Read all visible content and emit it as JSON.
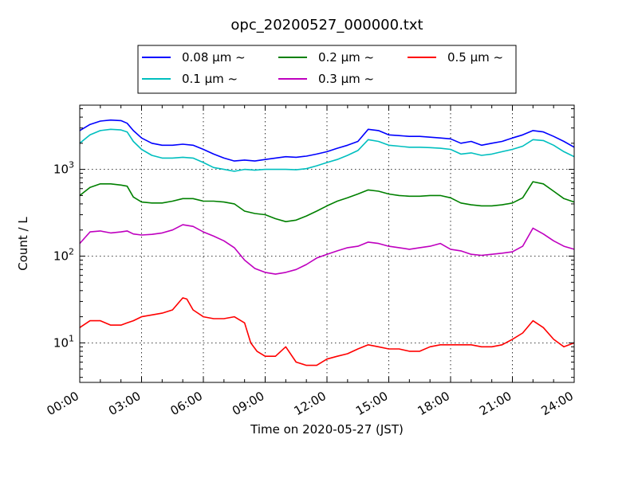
{
  "chart_data": {
    "type": "line",
    "title": "opc_20200527_000000.txt",
    "xlabel": "Time on 2020-05-27 (JST)",
    "ylabel": "Count / L",
    "x_unit": "hours",
    "xlim": [
      0,
      24
    ],
    "ylim": [
      3.5,
      5500
    ],
    "yscale": "log",
    "grid": true,
    "legend_position": "top-center",
    "x_ticks": [
      {
        "value": 0,
        "label": "00:00"
      },
      {
        "value": 3,
        "label": "03:00"
      },
      {
        "value": 6,
        "label": "06:00"
      },
      {
        "value": 9,
        "label": "09:00"
      },
      {
        "value": 12,
        "label": "12:00"
      },
      {
        "value": 15,
        "label": "15:00"
      },
      {
        "value": 18,
        "label": "18:00"
      },
      {
        "value": 21,
        "label": "21:00"
      },
      {
        "value": 24,
        "label": "24:00"
      }
    ],
    "y_ticks": [
      {
        "value": 10,
        "base": "10",
        "exp": "1"
      },
      {
        "value": 100,
        "base": "10",
        "exp": "2"
      },
      {
        "value": 1000,
        "base": "10",
        "exp": "3"
      }
    ],
    "series": [
      {
        "name": "0.08 μm ~",
        "color": "#0000ff",
        "x": [
          0,
          0.5,
          1,
          1.5,
          2,
          2.3,
          2.6,
          3,
          3.5,
          4,
          4.5,
          5,
          5.5,
          6,
          6.5,
          7,
          7.5,
          8,
          8.5,
          9,
          9.5,
          10,
          10.5,
          11,
          11.5,
          12,
          12.5,
          13,
          13.5,
          14,
          14.5,
          15,
          15.5,
          16,
          16.5,
          17,
          17.5,
          18,
          18.5,
          19,
          19.5,
          20,
          20.5,
          21,
          21.5,
          22,
          22.5,
          23,
          23.5,
          24
        ],
        "y": [
          2800,
          3300,
          3600,
          3700,
          3650,
          3400,
          2800,
          2300,
          2000,
          1900,
          1900,
          1950,
          1900,
          1700,
          1500,
          1350,
          1250,
          1280,
          1250,
          1300,
          1350,
          1400,
          1380,
          1420,
          1500,
          1600,
          1750,
          1900,
          2100,
          2900,
          2800,
          2500,
          2450,
          2400,
          2400,
          2350,
          2300,
          2250,
          2000,
          2100,
          1900,
          2000,
          2100,
          2300,
          2500,
          2800,
          2700,
          2400,
          2100,
          1800
        ]
      },
      {
        "name": "0.1 μm ~",
        "color": "#00bfbf",
        "x": [
          0,
          0.5,
          1,
          1.5,
          2,
          2.3,
          2.6,
          3,
          3.5,
          4,
          4.5,
          5,
          5.5,
          6,
          6.5,
          7,
          7.5,
          8,
          8.5,
          9,
          9.5,
          10,
          10.5,
          11,
          11.5,
          12,
          12.5,
          13,
          13.5,
          14,
          14.5,
          15,
          15.5,
          16,
          16.5,
          17,
          17.5,
          18,
          18.5,
          19,
          19.5,
          20,
          20.5,
          21,
          21.5,
          22,
          22.5,
          23,
          23.5,
          24
        ],
        "y": [
          2000,
          2500,
          2800,
          2900,
          2850,
          2700,
          2100,
          1700,
          1450,
          1350,
          1350,
          1380,
          1350,
          1200,
          1050,
          1000,
          950,
          1000,
          980,
          1000,
          1000,
          1000,
          990,
          1020,
          1100,
          1200,
          1300,
          1450,
          1650,
          2200,
          2100,
          1900,
          1850,
          1800,
          1800,
          1780,
          1750,
          1700,
          1500,
          1550,
          1450,
          1500,
          1600,
          1700,
          1850,
          2200,
          2150,
          1900,
          1600,
          1400
        ]
      },
      {
        "name": "0.2 μm ~",
        "color": "#008000",
        "x": [
          0,
          0.5,
          1,
          1.5,
          2,
          2.3,
          2.6,
          3,
          3.5,
          4,
          4.5,
          5,
          5.5,
          6,
          6.5,
          7,
          7.5,
          8,
          8.5,
          9,
          9.5,
          10,
          10.5,
          11,
          11.5,
          12,
          12.5,
          13,
          13.5,
          14,
          14.5,
          15,
          15.5,
          16,
          16.5,
          17,
          17.5,
          18,
          18.5,
          19,
          19.5,
          20,
          20.5,
          21,
          21.5,
          22,
          22.5,
          23,
          23.5,
          24
        ],
        "y": [
          500,
          620,
          680,
          680,
          660,
          640,
          480,
          420,
          410,
          410,
          430,
          460,
          460,
          430,
          430,
          420,
          400,
          330,
          310,
          300,
          270,
          250,
          260,
          290,
          330,
          380,
          430,
          470,
          520,
          580,
          560,
          520,
          500,
          490,
          490,
          500,
          500,
          470,
          410,
          390,
          380,
          380,
          390,
          410,
          470,
          720,
          680,
          560,
          460,
          420
        ]
      },
      {
        "name": "0.3 μm ~",
        "color": "#bf00bf",
        "x": [
          0,
          0.5,
          1,
          1.5,
          2,
          2.3,
          2.6,
          3,
          3.5,
          4,
          4.5,
          5,
          5.5,
          6,
          6.5,
          7,
          7.5,
          8,
          8.5,
          9,
          9.5,
          10,
          10.5,
          11,
          11.5,
          12,
          12.5,
          13,
          13.5,
          14,
          14.5,
          15,
          15.5,
          16,
          16.5,
          17,
          17.5,
          18,
          18.5,
          19,
          19.5,
          20,
          20.5,
          21,
          21.5,
          22,
          22.5,
          23,
          23.5,
          24
        ],
        "y": [
          140,
          190,
          195,
          185,
          190,
          195,
          180,
          175,
          178,
          185,
          200,
          230,
          220,
          190,
          170,
          150,
          125,
          90,
          72,
          65,
          62,
          65,
          70,
          80,
          95,
          105,
          115,
          125,
          130,
          145,
          140,
          130,
          125,
          120,
          125,
          130,
          140,
          120,
          115,
          105,
          102,
          105,
          108,
          112,
          130,
          210,
          180,
          150,
          130,
          120
        ]
      },
      {
        "name": "0.5 μm ~",
        "color": "#ff0000",
        "x": [
          0,
          0.5,
          1,
          1.5,
          2,
          2.3,
          2.6,
          3,
          3.5,
          4,
          4.5,
          5,
          5.2,
          5.5,
          6,
          6.5,
          7,
          7.5,
          8,
          8.3,
          8.6,
          9,
          9.5,
          10,
          10.5,
          11,
          11.5,
          12,
          12.5,
          13,
          13.5,
          14,
          14.5,
          15,
          15.5,
          16,
          16.5,
          17,
          17.5,
          18,
          18.5,
          19,
          19.5,
          20,
          20.5,
          21,
          21.5,
          22,
          22.5,
          23,
          23.5,
          24
        ],
        "y": [
          15,
          18,
          18,
          16,
          16,
          17,
          18,
          20,
          21,
          22,
          24,
          33,
          32,
          24,
          20,
          19,
          19,
          20,
          17,
          10,
          8,
          7,
          7,
          9,
          6,
          5.5,
          5.5,
          6.5,
          7,
          7.5,
          8.5,
          9.5,
          9,
          8.5,
          8.5,
          8,
          8,
          9,
          9.5,
          9.5,
          9.5,
          9.5,
          9,
          9,
          9.5,
          11,
          13,
          18,
          15,
          11,
          9,
          10
        ]
      }
    ]
  }
}
